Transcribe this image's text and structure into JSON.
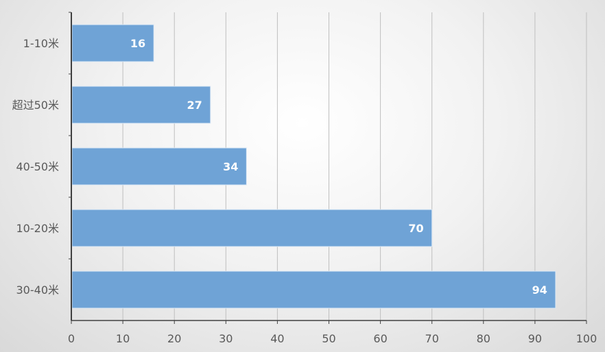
{
  "chart_data": {
    "type": "bar",
    "orientation": "horizontal",
    "categories": [
      "1-10米",
      "超过50米",
      "40-50米",
      "10-20米",
      "30-40米"
    ],
    "values": [
      16,
      27,
      34,
      70,
      94
    ],
    "xlim": [
      0,
      100
    ],
    "x_ticks": [
      0,
      10,
      20,
      30,
      40,
      50,
      60,
      70,
      80,
      90,
      100
    ],
    "grid": "vertical",
    "data_labels": true,
    "bar_color": "#6fa3d6",
    "bar_border_color": "#dbe8f5"
  }
}
